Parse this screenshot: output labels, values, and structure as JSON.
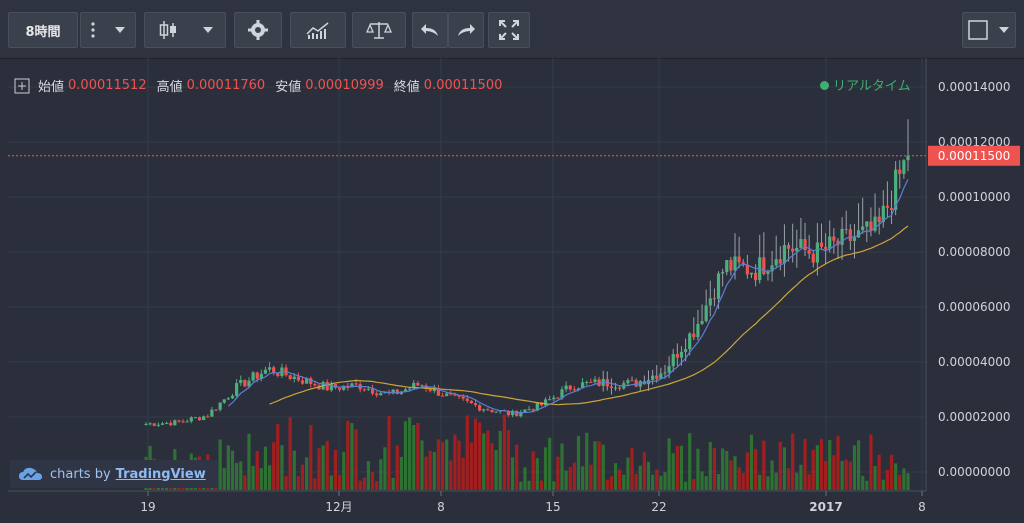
{
  "toolbar": {
    "interval_label": "8時間"
  },
  "legend": {
    "open_label": "始値",
    "open_value": "0.00011512",
    "high_label": "高値",
    "high_value": "0.00011760",
    "low_label": "安値",
    "low_value": "0.00010999",
    "close_label": "終値",
    "close_value": "0.00011500"
  },
  "realtime_label": "リアルタイム",
  "watermark": {
    "prefix": "charts by",
    "brand": "TradingView"
  },
  "colors": {
    "up": "#4caf7d",
    "down": "#ef5350",
    "ma_fast": "#5b7fd8",
    "ma_slow": "#c9a53a",
    "vol_up": "#2e7d32",
    "vol_down": "#b71c1c"
  },
  "chart_data": {
    "type": "candlestick",
    "y_ticks": [
      "0.00014000",
      "0.00012000",
      "0.00010000",
      "0.00008000",
      "0.00006000",
      "0.00004000",
      "0.00002000",
      "0.00000000"
    ],
    "y_range": [
      0,
      0.000152
    ],
    "x_ticks": [
      "19",
      "12月",
      "8",
      "15",
      "22",
      "2017",
      "8"
    ],
    "last_price_label": "0.00011500",
    "last_price": 0.000115,
    "close_series_approx": [
      1.75e-05,
      1.8e-05,
      2.05e-05,
      3.1e-05,
      3.75e-05,
      3.4e-05,
      3.05e-05,
      3.15e-05,
      2.8e-05,
      3.2e-05,
      2.7e-05,
      2.35e-05,
      2.1e-05,
      2.45e-05,
      3.15e-05,
      3.25e-05,
      3.2e-05,
      3.7e-05,
      5.2e-05,
      7.5e-05,
      7.35e-05,
      8.2e-05,
      7.95e-05,
      8.45e-05,
      8.8e-05,
      0.000115
    ]
  }
}
